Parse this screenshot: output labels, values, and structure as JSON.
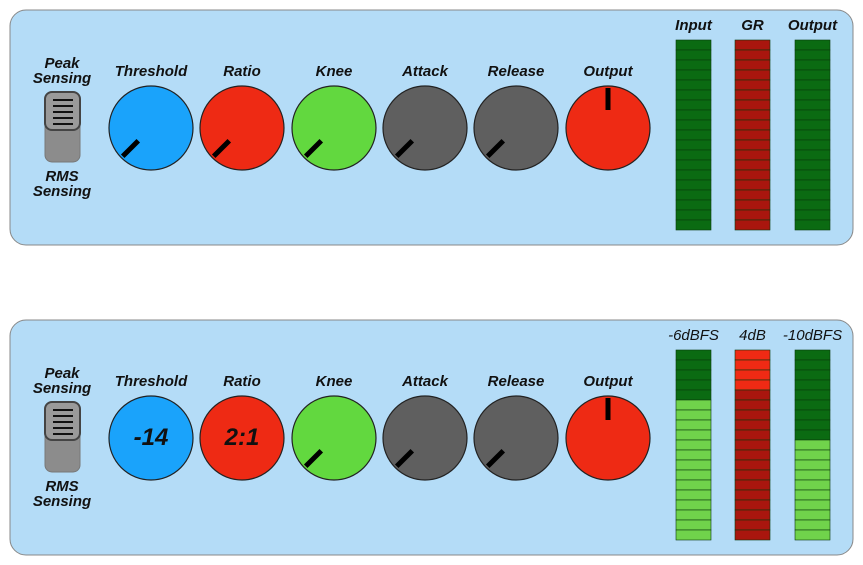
{
  "panels": [
    {
      "switch": {
        "top_label": "Peak Sensing",
        "bottom_label": "RMS Sensing"
      },
      "knobs": [
        {
          "label": "Threshold",
          "color": "#1aa3fb",
          "pointer_deg": 225
        },
        {
          "label": "Ratio",
          "color": "#ee2a14",
          "pointer_deg": 225
        },
        {
          "label": "Knee",
          "color": "#62d83f",
          "pointer_deg": 225
        },
        {
          "label": "Attack",
          "color": "#5f5f5f",
          "pointer_deg": 225
        },
        {
          "label": "Release",
          "color": "#5f5f5f",
          "pointer_deg": 225
        },
        {
          "label": "Output",
          "color": "#ee2a14",
          "pointer_deg": 0
        }
      ],
      "meters": [
        {
          "label": "Input",
          "color": "#0b6b12",
          "lit_color": "#70d34b",
          "segments": 19,
          "lit": 0
        },
        {
          "label": "GR",
          "color": "#a9160e",
          "lit_color": "#f02a14",
          "segments": 19,
          "lit": 0
        },
        {
          "label": "Output",
          "color": "#0b6b12",
          "lit_color": "#70d34b",
          "segments": 19,
          "lit": 0
        }
      ]
    },
    {
      "switch": {
        "top_label": "Peak Sensing",
        "bottom_label": "RMS Sensing"
      },
      "knobs": [
        {
          "label": "Threshold",
          "color": "#1aa3fb",
          "display": "-14"
        },
        {
          "label": "Ratio",
          "color": "#ee2a14",
          "display": "2:1"
        },
        {
          "label": "Knee",
          "color": "#62d83f",
          "pointer_deg": 225
        },
        {
          "label": "Attack",
          "color": "#5f5f5f",
          "pointer_deg": 225
        },
        {
          "label": "Release",
          "color": "#5f5f5f",
          "pointer_deg": 225
        },
        {
          "label": "Output",
          "color": "#ee2a14",
          "pointer_deg": 0
        }
      ],
      "meters": [
        {
          "label": "-6dBFS",
          "color": "#0b6b12",
          "lit_color": "#70d34b",
          "segments": 19,
          "lit": 14
        },
        {
          "label": "4dB",
          "color": "#a9160e",
          "lit_color": "#f02a14",
          "segments": 19,
          "lit": 4
        },
        {
          "label": "-10dBFS",
          "color": "#0b6b12",
          "lit_color": "#70d34b",
          "segments": 19,
          "lit": 10
        }
      ]
    }
  ]
}
